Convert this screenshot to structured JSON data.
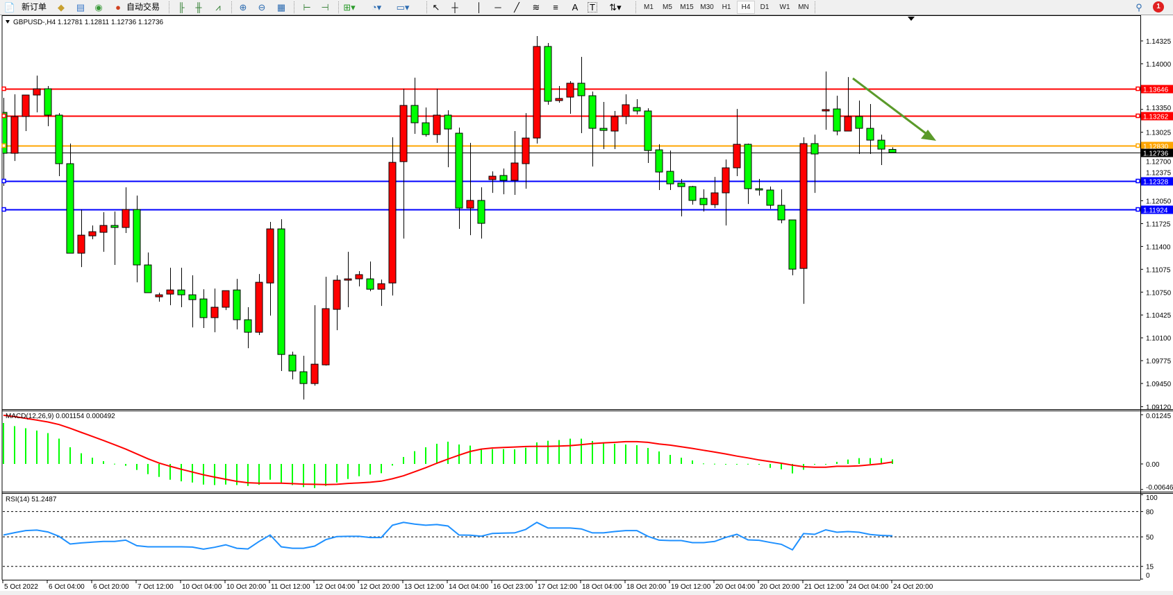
{
  "toolbar": {
    "new_order_label": "新订单",
    "auto_trading_label": "自动交易",
    "icons": [
      "new-order-icon",
      "metaquotes-language-icon",
      "market-watch-icon",
      "signals-icon",
      "auto-trading-icon",
      "bar-chart-icon",
      "candlestick-icon",
      "line-chart-icon",
      "zoom-in-icon",
      "zoom-out-icon",
      "tile-windows-icon",
      "auto-scroll-icon",
      "chart-shift-icon",
      "indicators-icon",
      "periods-icon",
      "templates-icon",
      "cursor-icon",
      "crosshair-icon",
      "vertical-line-icon",
      "horizontal-line-icon",
      "trendline-icon",
      "fibonacci-fan-icon",
      "fibonacci-retracement-icon",
      "text-icon",
      "text-label-icon",
      "arrows-icon",
      "search-icon",
      "notifications-icon"
    ],
    "text_tool": "A",
    "label_tool": "T",
    "timeframes": [
      "M1",
      "M5",
      "M15",
      "M30",
      "H1",
      "H4",
      "D1",
      "W1",
      "MN"
    ],
    "active_timeframe": "H4",
    "notification_count": "1"
  },
  "chart": {
    "title": "GBPUSD-,H4  1.12781 1.12811 1.12736 1.12736",
    "colors": {
      "bull": "#ff0000",
      "bear": "#00ff00",
      "outline": "#000000",
      "macd_hist": "#00ff00",
      "macd_signal": "#ff0000",
      "rsi": "#1e90ff",
      "arrow": "#5a9a2a"
    },
    "price_ticks": [
      "1.14325",
      "1.14000",
      "1.13350",
      "1.13025",
      "1.12700",
      "1.12375",
      "1.12050",
      "1.11725",
      "1.11400",
      "1.11075",
      "1.10750",
      "1.10425",
      "1.10100",
      "1.09775",
      "1.09450",
      "1.09120"
    ],
    "levels": [
      {
        "price": "1.13646",
        "color": "#ff0000"
      },
      {
        "price": "1.13262",
        "color": "#ff0000"
      },
      {
        "price": "1.12830",
        "color": "#ffa500"
      },
      {
        "price": "1.12328",
        "color": "#0000ff"
      },
      {
        "price": "1.11924",
        "color": "#0000ff"
      }
    ],
    "current_price": "1.12736",
    "time_labels": [
      "5 Oct 2022",
      "6 Oct 04:00",
      "6 Oct 20:00",
      "7 Oct 12:00",
      "10 Oct 04:00",
      "10 Oct 20:00",
      "11 Oct 12:00",
      "12 Oct 04:00",
      "12 Oct 20:00",
      "13 Oct 12:00",
      "14 Oct 04:00",
      "16 Oct 23:00",
      "17 Oct 12:00",
      "18 Oct 04:00",
      "18 Oct 20:00",
      "19 Oct 12:00",
      "20 Oct 04:00",
      "20 Oct 20:00",
      "21 Oct 12:00",
      "24 Oct 04:00",
      "24 Oct 20:00"
    ],
    "macd_label": "MACD(12,26,9) 0.001154 0.000492",
    "macd_ticks": [
      "0.01245",
      "0.00",
      "-0.006465"
    ],
    "rsi_label": "RSI(14) 51.2487",
    "rsi_ticks": [
      "100",
      "80",
      "50",
      "15",
      "0"
    ]
  },
  "chart_data": {
    "type": "candlestick",
    "symbol": "GBPUSD-",
    "timeframe": "H4",
    "ylim": [
      1.09085,
      1.1468
    ],
    "ohlc": [
      [
        1.13308,
        1.13515,
        1.12262,
        1.12726
      ],
      [
        1.12726,
        1.13565,
        1.12617,
        1.13249
      ],
      [
        1.13249,
        1.1356,
        1.13042,
        1.13555
      ],
      [
        1.13555,
        1.13831,
        1.13308,
        1.13644
      ],
      [
        1.13644,
        1.13683,
        1.13111,
        1.13269
      ],
      [
        1.13269,
        1.13298,
        1.124,
        1.12578
      ],
      [
        1.12578,
        1.12864,
        1.11304,
        1.11304
      ],
      [
        1.11304,
        1.11926,
        1.11107,
        1.11561
      ],
      [
        1.11551,
        1.11699,
        1.11502,
        1.1161
      ],
      [
        1.11601,
        1.11887,
        1.11324,
        1.11699
      ],
      [
        1.11699,
        1.11897,
        1.11137,
        1.1167
      ],
      [
        1.1167,
        1.12242,
        1.11591,
        1.11926
      ],
      [
        1.11926,
        1.12124,
        1.1089,
        1.11137
      ],
      [
        1.11137,
        1.11314,
        1.10742,
        1.10742
      ],
      [
        1.10683,
        1.10742,
        1.10614,
        1.10712
      ],
      [
        1.10722,
        1.11097,
        1.10564,
        1.10781
      ],
      [
        1.10781,
        1.11097,
        1.10535,
        1.10712
      ],
      [
        1.10712,
        1.10989,
        1.10248,
        1.10643
      ],
      [
        1.10653,
        1.10791,
        1.10239,
        1.10387
      ],
      [
        1.10387,
        1.10801,
        1.10179,
        1.10535
      ],
      [
        1.10535,
        1.10771,
        1.10495,
        1.10771
      ],
      [
        1.10781,
        1.10939,
        1.10219,
        1.10357
      ],
      [
        1.10357,
        1.10535,
        1.09952,
        1.10179
      ],
      [
        1.10179,
        1.11008,
        1.1014,
        1.1089
      ],
      [
        1.1088,
        1.11749,
        1.10416,
        1.1165
      ],
      [
        1.1165,
        1.11788,
        1.09627,
        1.09863
      ],
      [
        1.09854,
        1.09903,
        1.09508,
        1.09627
      ],
      [
        1.09617,
        1.09844,
        1.09222,
        1.09449
      ],
      [
        1.09449,
        1.10564,
        1.09419,
        1.09725
      ],
      [
        1.09715,
        1.10969,
        1.09705,
        1.10515
      ],
      [
        1.10505,
        1.10989,
        1.10209,
        1.1092
      ],
      [
        1.1092,
        1.11324,
        1.10535,
        1.10939
      ],
      [
        1.10939,
        1.11048,
        1.10831,
        1.10999
      ],
      [
        1.10939,
        1.11186,
        1.10762,
        1.10791
      ],
      [
        1.10791,
        1.10929,
        1.10554,
        1.1087
      ],
      [
        1.1088,
        1.12953,
        1.10702,
        1.12597
      ],
      [
        1.12607,
        1.13644,
        1.11512,
        1.13407
      ],
      [
        1.13407,
        1.13802,
        1.13002,
        1.1316
      ],
      [
        1.1316,
        1.13377,
        1.12963,
        1.12992
      ],
      [
        1.12992,
        1.13644,
        1.12874,
        1.13269
      ],
      [
        1.13269,
        1.13338,
        1.12528,
        1.13071
      ],
      [
        1.13012,
        1.13091,
        1.1165,
        1.11946
      ],
      [
        1.11946,
        1.12874,
        1.11561,
        1.12055
      ],
      [
        1.12055,
        1.12242,
        1.11512,
        1.11729
      ],
      [
        1.12351,
        1.12469,
        1.12163,
        1.124
      ],
      [
        1.1241,
        1.12509,
        1.12143,
        1.12341
      ],
      [
        1.12341,
        1.13042,
        1.12134,
        1.12588
      ],
      [
        1.12578,
        1.13298,
        1.12222,
        1.12943
      ],
      [
        1.12943,
        1.14394,
        1.12864,
        1.14246
      ],
      [
        1.14246,
        1.14295,
        1.13417,
        1.13466
      ],
      [
        1.13476,
        1.13683,
        1.13446,
        1.13506
      ],
      [
        1.13525,
        1.13752,
        1.13288,
        1.13723
      ],
      [
        1.13723,
        1.14098,
        1.13012,
        1.13545
      ],
      [
        1.13545,
        1.13604,
        1.12538,
        1.13081
      ],
      [
        1.13081,
        1.13456,
        1.12785,
        1.13051
      ],
      [
        1.13042,
        1.13328,
        1.12785,
        1.13249
      ],
      [
        1.13249,
        1.13565,
        1.1314,
        1.13417
      ],
      [
        1.13377,
        1.13496,
        1.13278,
        1.13328
      ],
      [
        1.13328,
        1.13367,
        1.12588,
        1.12765
      ],
      [
        1.12775,
        1.12854,
        1.12203,
        1.12459
      ],
      [
        1.12469,
        1.12765,
        1.12203,
        1.12291
      ],
      [
        1.12301,
        1.12361,
        1.11828,
        1.12252
      ],
      [
        1.12252,
        1.12262,
        1.11995,
        1.12055
      ],
      [
        1.12084,
        1.12213,
        1.11897,
        1.11995
      ],
      [
        1.11995,
        1.1239,
        1.11946,
        1.12163
      ],
      [
        1.12163,
        1.12637,
        1.11699,
        1.12519
      ],
      [
        1.12519,
        1.13357,
        1.124,
        1.12854
      ],
      [
        1.12854,
        1.12864,
        1.12005,
        1.12222
      ],
      [
        1.12222,
        1.12361,
        1.12124,
        1.12203
      ],
      [
        1.12203,
        1.12252,
        1.11936,
        1.11986
      ],
      [
        1.11986,
        1.12213,
        1.11729,
        1.11778
      ],
      [
        1.11778,
        1.11778,
        1.10989,
        1.11077
      ],
      [
        1.11087,
        1.12953,
        1.10584,
        1.12864
      ],
      [
        1.12864,
        1.12992,
        1.12163,
        1.12716
      ],
      [
        1.13328,
        1.1389,
        1.13061,
        1.13348
      ],
      [
        1.13357,
        1.13545,
        1.12982,
        1.13042
      ],
      [
        1.13042,
        1.13811,
        1.13042,
        1.13249
      ],
      [
        1.13249,
        1.13476,
        1.12716,
        1.13081
      ],
      [
        1.13081,
        1.13427,
        1.12716,
        1.12913
      ],
      [
        1.12913,
        1.12992,
        1.12558,
        1.12785
      ],
      [
        1.12781,
        1.12811,
        1.12736,
        1.12736
      ]
    ],
    "macd": {
      "ylim": [
        -0.00701,
        0.01368
      ],
      "histogram": [
        0.01035,
        0.00956,
        0.00903,
        0.00844,
        0.0078,
        0.0064,
        0.00422,
        0.0027,
        0.00158,
        0.0007,
        5e-05,
        -0.00047,
        -0.00152,
        -0.00258,
        -0.00328,
        -0.00399,
        -0.0044,
        -0.0047,
        -0.00522,
        -0.00534,
        -0.00522,
        -0.00534,
        -0.00557,
        -0.00528,
        -0.00399,
        -0.0047,
        -0.00534,
        -0.00586,
        -0.0061,
        -0.00557,
        -0.0047,
        -0.00381,
        -0.00311,
        -0.0027,
        -0.00235,
        -0.00041,
        0.00176,
        0.00323,
        0.00422,
        0.0051,
        0.00563,
        0.00492,
        0.00464,
        0.00375,
        0.00375,
        0.00375,
        0.00369,
        0.0041,
        0.00545,
        0.00586,
        0.00604,
        0.00639,
        0.00639,
        0.0058,
        0.00533,
        0.0051,
        0.00492,
        0.00475,
        0.00404,
        0.00316,
        0.00229,
        0.00158,
        0.00088,
        0.00012,
        5e-05,
        -6e-05,
        -6e-05,
        3e-05,
        -0.00018,
        -0.001,
        -0.00135,
        -0.0024,
        -0.00147,
        0.0,
        -6e-05,
        0.00053,
        0.00111,
        0.00147,
        0.00147,
        0.00147,
        0.001154
      ],
      "signal": [
        0.0123,
        0.01195,
        0.01154,
        0.01108,
        0.01061,
        0.00996,
        0.00902,
        0.00797,
        0.00697,
        0.00592,
        0.00486,
        0.00375,
        0.00252,
        0.00129,
        0.00023,
        -0.00059,
        -0.00135,
        -0.00205,
        -0.00275,
        -0.00334,
        -0.00387,
        -0.0044,
        -0.00475,
        -0.00486,
        -0.00486,
        -0.00486,
        -0.00498,
        -0.0051,
        -0.00516,
        -0.00522,
        -0.00516,
        -0.00492,
        -0.0048,
        -0.00463,
        -0.00434,
        -0.00375,
        -0.00299,
        -0.00199,
        -0.00094,
        0.00018,
        0.00123,
        0.00223,
        0.00316,
        0.00375,
        0.00404,
        0.00416,
        0.00428,
        0.0044,
        0.00445,
        0.00445,
        0.00451,
        0.00463,
        0.00486,
        0.00516,
        0.00533,
        0.00545,
        0.00563,
        0.00563,
        0.00545,
        0.00504,
        0.00475,
        0.00434,
        0.00393,
        0.00346,
        0.00299,
        0.00252,
        0.00199,
        0.00152,
        0.001,
        0.00059,
        0.00018,
        -0.00029,
        -0.0007,
        -0.00082,
        -0.00082,
        -0.00059,
        -0.00059,
        -0.00047,
        -0.00023,
        6e-05,
        0.000492
      ]
    },
    "rsi": {
      "ylim": [
        0,
        100
      ],
      "levels": [
        80,
        50,
        15
      ],
      "values": [
        52.2,
        55.0,
        57.4,
        58.0,
        55.8,
        50.6,
        41.5,
        42.8,
        43.7,
        44.5,
        44.5,
        46.1,
        39.5,
        38.2,
        38.2,
        38.2,
        38.2,
        37.9,
        35.4,
        37.6,
        40.6,
        36.5,
        35.7,
        44.5,
        52.2,
        38.2,
        36.5,
        36.5,
        39.0,
        46.7,
        50.3,
        50.6,
        50.6,
        49.2,
        49.2,
        63.8,
        67.1,
        65.2,
        63.8,
        64.6,
        62.9,
        52.2,
        51.9,
        50.8,
        54.1,
        54.4,
        54.7,
        58.8,
        67.1,
        60.5,
        60.5,
        60.5,
        59.4,
        54.7,
        54.7,
        56.3,
        57.4,
        57.4,
        50.6,
        46.1,
        45.6,
        45.6,
        43.1,
        43.1,
        44.5,
        49.4,
        53.0,
        46.4,
        45.9,
        43.4,
        41.2,
        34.6,
        53.9,
        53.0,
        58.3,
        55.5,
        56.3,
        55.5,
        52.8,
        51.7,
        51.2487
      ]
    }
  }
}
